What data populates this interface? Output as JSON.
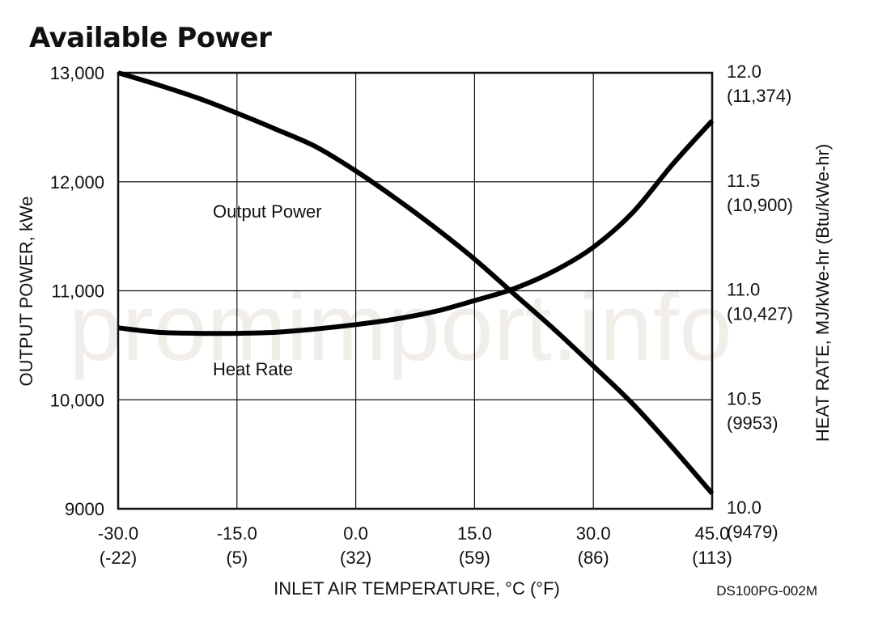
{
  "watermark": "promimport.info",
  "chart_data": {
    "type": "line",
    "title": "Available Power",
    "xlabel": "INLET AIR TEMPERATURE, °C (°F)",
    "ylabel_left": "OUTPUT POWER, kWe",
    "ylabel_right": "HEAT RATE, MJ/kWe-hr (Btu/kWe-hr)",
    "code": "DS100PG-002M",
    "xlim": [
      -30,
      45
    ],
    "ylim_left": [
      9000,
      13000
    ],
    "ylim_right": [
      10.0,
      12.0
    ],
    "grid": true,
    "x_ticks": [
      {
        "value": -30,
        "line1": "-30.0",
        "line2": "(-22)"
      },
      {
        "value": -15,
        "line1": "-15.0",
        "line2": "(5)"
      },
      {
        "value": 0,
        "line1": "0.0",
        "line2": "(32)"
      },
      {
        "value": 15,
        "line1": "15.0",
        "line2": "(59)"
      },
      {
        "value": 30,
        "line1": "30.0",
        "line2": "(86)"
      },
      {
        "value": 45,
        "line1": "45.0",
        "line2": "(113)"
      }
    ],
    "y_left_ticks": [
      {
        "value": 13000,
        "label": "13,000"
      },
      {
        "value": 12000,
        "label": "12,000"
      },
      {
        "value": 11000,
        "label": "11,000"
      },
      {
        "value": 10000,
        "label": "10,000"
      },
      {
        "value": 9000,
        "label": "9000"
      }
    ],
    "y_right_ticks": [
      {
        "value": 12.0,
        "line1": "12.0",
        "line2": "(11,374)"
      },
      {
        "value": 11.5,
        "line1": "11.5",
        "line2": "(10,900)"
      },
      {
        "value": 11.0,
        "line1": "11.0",
        "line2": "(10,427)"
      },
      {
        "value": 10.5,
        "line1": "10.5",
        "line2": "(9953)"
      },
      {
        "value": 10.0,
        "line1": "10.0",
        "line2": "(9479)"
      }
    ],
    "series": [
      {
        "name": "Output Power",
        "axis": "left",
        "x": [
          -30,
          -25,
          -20,
          -15,
          -10,
          -5,
          0,
          5,
          10,
          15,
          20,
          25,
          30,
          35,
          40,
          45
        ],
        "values": [
          13000,
          12890,
          12770,
          12630,
          12480,
          12320,
          12100,
          11850,
          11580,
          11290,
          10970,
          10650,
          10310,
          9960,
          9560,
          9140
        ]
      },
      {
        "name": "Heat Rate",
        "axis": "right",
        "x": [
          -30,
          -25,
          -20,
          -15,
          -10,
          -5,
          0,
          5,
          10,
          15,
          20,
          25,
          30,
          35,
          40,
          45
        ],
        "values": [
          10.83,
          10.81,
          10.805,
          10.805,
          10.81,
          10.825,
          10.845,
          10.87,
          10.905,
          10.955,
          11.01,
          11.09,
          11.2,
          11.36,
          11.58,
          11.78
        ]
      }
    ]
  }
}
